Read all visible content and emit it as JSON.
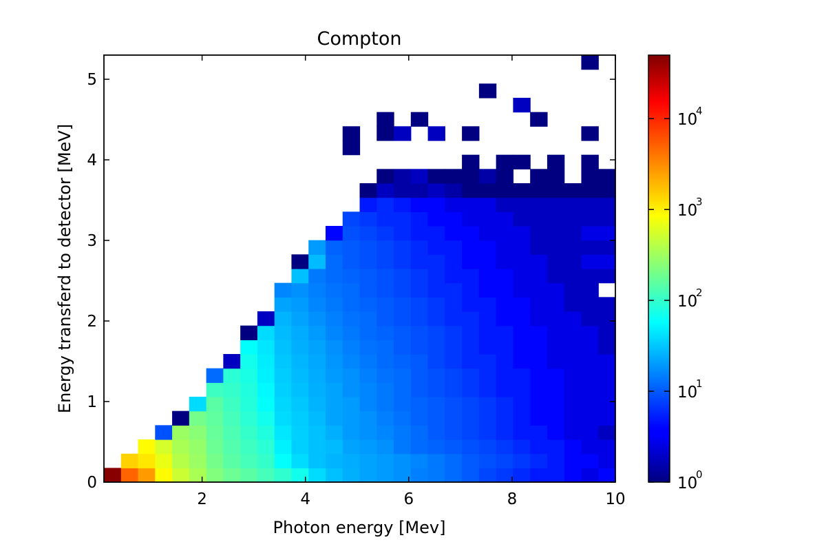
{
  "chart_data": {
    "type": "heatmap",
    "title": "Compton",
    "xlabel": "Photon energy [Mev]",
    "ylabel": "Energy transferd to detector [MeV]",
    "xlim": [
      0.1,
      10.0
    ],
    "ylim": [
      0.0,
      5.3
    ],
    "x_ticks": [
      2,
      4,
      6,
      8,
      10
    ],
    "y_ticks": [
      0,
      1,
      2,
      3,
      4,
      5
    ],
    "bins": {
      "nx": 30,
      "ny": 30,
      "x_start": 0.1,
      "x_end": 10.0,
      "y_start": 0.0,
      "y_end": 5.3
    },
    "colormap": "jet",
    "colorbar": {
      "scale": "log",
      "min": 1,
      "max": 50000,
      "ticks": [
        {
          "base": "10",
          "exp": "0",
          "value": 1
        },
        {
          "base": "10",
          "exp": "1",
          "value": 10
        },
        {
          "base": "10",
          "exp": "2",
          "value": 100
        },
        {
          "base": "10",
          "exp": "3",
          "value": 1000
        },
        {
          "base": "10",
          "exp": "4",
          "value": 10000
        }
      ]
    },
    "counts": [
      [
        45000,
        4500,
        2500,
        900,
        500,
        350,
        230,
        180,
        150,
        120,
        95,
        70,
        40,
        30,
        25,
        22,
        20,
        18,
        15,
        14,
        12,
        10,
        8,
        7,
        6,
        5,
        5,
        4,
        3,
        4
      ],
      [
        0,
        1400,
        1100,
        700,
        400,
        300,
        200,
        150,
        120,
        100,
        60,
        40,
        30,
        26,
        24,
        22,
        20,
        18,
        16,
        14,
        12,
        10,
        9,
        8,
        7,
        6,
        5,
        4,
        4,
        3
      ],
      [
        0,
        0,
        900,
        550,
        350,
        280,
        180,
        140,
        110,
        90,
        50,
        35,
        30,
        28,
        22,
        20,
        18,
        14,
        12,
        11,
        10,
        9,
        8,
        7,
        6,
        5,
        5,
        4,
        3,
        3
      ],
      [
        0,
        0,
        0,
        9,
        300,
        250,
        170,
        130,
        100,
        80,
        45,
        35,
        30,
        25,
        20,
        18,
        16,
        14,
        12,
        10,
        9,
        8,
        7,
        6,
        5,
        5,
        4,
        3,
        3,
        2
      ],
      [
        0,
        0,
        0,
        0,
        1,
        200,
        160,
        120,
        90,
        70,
        40,
        34,
        28,
        22,
        20,
        18,
        15,
        13,
        11,
        10,
        9,
        8,
        7,
        6,
        5,
        4,
        4,
        3,
        3,
        3
      ],
      [
        0,
        0,
        0,
        0,
        0,
        40,
        150,
        110,
        85,
        60,
        38,
        32,
        26,
        22,
        20,
        16,
        14,
        12,
        11,
        10,
        9,
        8,
        7,
        6,
        5,
        4,
        4,
        3,
        3,
        3
      ],
      [
        0,
        0,
        0,
        0,
        0,
        0,
        110,
        100,
        80,
        55,
        35,
        30,
        25,
        22,
        18,
        16,
        14,
        12,
        10,
        9,
        8,
        7,
        6,
        5,
        5,
        4,
        4,
        3,
        3,
        3
      ],
      [
        0,
        0,
        0,
        0,
        0,
        0,
        12,
        90,
        75,
        50,
        34,
        28,
        24,
        20,
        18,
        15,
        13,
        12,
        10,
        9,
        8,
        7,
        6,
        5,
        5,
        4,
        4,
        3,
        3,
        3
      ],
      [
        0,
        0,
        0,
        0,
        0,
        0,
        0,
        2,
        70,
        48,
        32,
        27,
        23,
        19,
        16,
        14,
        12,
        11,
        10,
        8,
        7,
        6,
        6,
        5,
        4,
        4,
        3,
        3,
        3,
        3
      ],
      [
        0,
        0,
        0,
        0,
        0,
        0,
        0,
        0,
        60,
        45,
        30,
        25,
        22,
        18,
        15,
        13,
        12,
        10,
        9,
        8,
        7,
        6,
        5,
        5,
        4,
        4,
        3,
        3,
        3,
        2
      ],
      [
        0,
        0,
        0,
        0,
        0,
        0,
        0,
        0,
        1,
        40,
        28,
        24,
        20,
        16,
        14,
        12,
        11,
        10,
        9,
        8,
        7,
        6,
        5,
        5,
        4,
        4,
        3,
        3,
        3,
        2
      ],
      [
        0,
        0,
        0,
        0,
        0,
        0,
        0,
        0,
        0,
        2,
        26,
        22,
        18,
        15,
        13,
        12,
        10,
        9,
        8,
        7,
        6,
        6,
        5,
        4,
        4,
        3,
        3,
        3,
        2,
        2
      ],
      [
        0,
        0,
        0,
        0,
        0,
        0,
        0,
        0,
        0,
        0,
        22,
        20,
        16,
        14,
        12,
        11,
        10,
        9,
        8,
        7,
        6,
        5,
        5,
        4,
        4,
        3,
        3,
        2,
        2,
        2
      ],
      [
        0,
        0,
        0,
        0,
        0,
        0,
        0,
        0,
        0,
        0,
        16,
        18,
        15,
        13,
        12,
        10,
        9,
        8,
        7,
        6,
        6,
        5,
        4,
        4,
        3,
        3,
        3,
        2,
        2,
        0
      ],
      [
        0,
        0,
        0,
        0,
        0,
        0,
        0,
        0,
        0,
        0,
        0,
        30,
        14,
        12,
        11,
        10,
        9,
        8,
        7,
        6,
        5,
        5,
        4,
        4,
        3,
        3,
        2,
        2,
        2,
        2
      ],
      [
        0,
        0,
        0,
        0,
        0,
        0,
        0,
        0,
        0,
        0,
        0,
        1,
        28,
        12,
        10,
        9,
        8,
        7,
        6,
        6,
        5,
        4,
        4,
        3,
        3,
        3,
        2,
        2,
        3,
        3
      ],
      [
        0,
        0,
        0,
        0,
        0,
        0,
        0,
        0,
        0,
        0,
        0,
        0,
        20,
        11,
        10,
        9,
        8,
        7,
        6,
        5,
        5,
        4,
        4,
        3,
        3,
        2,
        2,
        2,
        2,
        2
      ],
      [
        0,
        0,
        0,
        0,
        0,
        0,
        0,
        0,
        0,
        0,
        0,
        0,
        0,
        4,
        9,
        8,
        7,
        6,
        5,
        5,
        4,
        4,
        3,
        3,
        3,
        2,
        2,
        2,
        3,
        3
      ],
      [
        0,
        0,
        0,
        0,
        0,
        0,
        0,
        0,
        0,
        0,
        0,
        0,
        0,
        0,
        8,
        7,
        6,
        6,
        5,
        4,
        4,
        3,
        3,
        3,
        2,
        2,
        2,
        2,
        2,
        2
      ],
      [
        0,
        0,
        0,
        0,
        0,
        0,
        0,
        0,
        0,
        0,
        0,
        0,
        0,
        0,
        0,
        5,
        6,
        5,
        4,
        4,
        3,
        3,
        3,
        2,
        2,
        2,
        2,
        2,
        2,
        2
      ],
      [
        0,
        0,
        0,
        0,
        0,
        0,
        0,
        0,
        0,
        0,
        0,
        0,
        0,
        0,
        0,
        1,
        2,
        1.5,
        1.5,
        2,
        1.5,
        1,
        1,
        1,
        1,
        1,
        1,
        1,
        1,
        1
      ],
      [
        0,
        0,
        0,
        0,
        0,
        0,
        0,
        0,
        0,
        0,
        0,
        0,
        0,
        0,
        0,
        0,
        1,
        1.5,
        2,
        1,
        1,
        1,
        1.5,
        1,
        0,
        1,
        1,
        0,
        1,
        1
      ],
      [
        0,
        0,
        0,
        0,
        0,
        0,
        0,
        0,
        0,
        0,
        0,
        0,
        0,
        0,
        0,
        0,
        0,
        0,
        0,
        0,
        0,
        1,
        0,
        1,
        1,
        0,
        1,
        0,
        1,
        0
      ],
      [
        0,
        0,
        0,
        0,
        0,
        0,
        0,
        0,
        0,
        0,
        0,
        0,
        0,
        0,
        1,
        0,
        0,
        0,
        0,
        0,
        0,
        0,
        0,
        0,
        0,
        0,
        0,
        0,
        0,
        0
      ],
      [
        0,
        0,
        0,
        0,
        0,
        0,
        0,
        0,
        0,
        0,
        0,
        0,
        0,
        0,
        1,
        0,
        1,
        2,
        0,
        2,
        0,
        1,
        0,
        0,
        0,
        0,
        0,
        0,
        1,
        0
      ],
      [
        0,
        0,
        0,
        0,
        0,
        0,
        0,
        0,
        0,
        0,
        0,
        0,
        0,
        0,
        0,
        0,
        1,
        0,
        1,
        0,
        0,
        0,
        0,
        0,
        0,
        1,
        0,
        0,
        0,
        0
      ],
      [
        0,
        0,
        0,
        0,
        0,
        0,
        0,
        0,
        0,
        0,
        0,
        0,
        0,
        0,
        0,
        0,
        0,
        0,
        0,
        0,
        0,
        0,
        0,
        0,
        2,
        0,
        0,
        0,
        0,
        0
      ],
      [
        0,
        0,
        0,
        0,
        0,
        0,
        0,
        0,
        0,
        0,
        0,
        0,
        0,
        0,
        0,
        0,
        0,
        0,
        0,
        0,
        0,
        0,
        1,
        0,
        0,
        0,
        0,
        0,
        0,
        0
      ],
      [
        0,
        0,
        0,
        0,
        0,
        0,
        0,
        0,
        0,
        0,
        0,
        0,
        0,
        0,
        0,
        0,
        0,
        0,
        0,
        0,
        0,
        0,
        0,
        0,
        0,
        0,
        0,
        0,
        0,
        0
      ],
      [
        0,
        0,
        0,
        0,
        0,
        0,
        0,
        0,
        0,
        0,
        0,
        0,
        0,
        0,
        0,
        0,
        0,
        0,
        0,
        0,
        0,
        0,
        0,
        0,
        0,
        0,
        0,
        0,
        1,
        0
      ]
    ]
  }
}
